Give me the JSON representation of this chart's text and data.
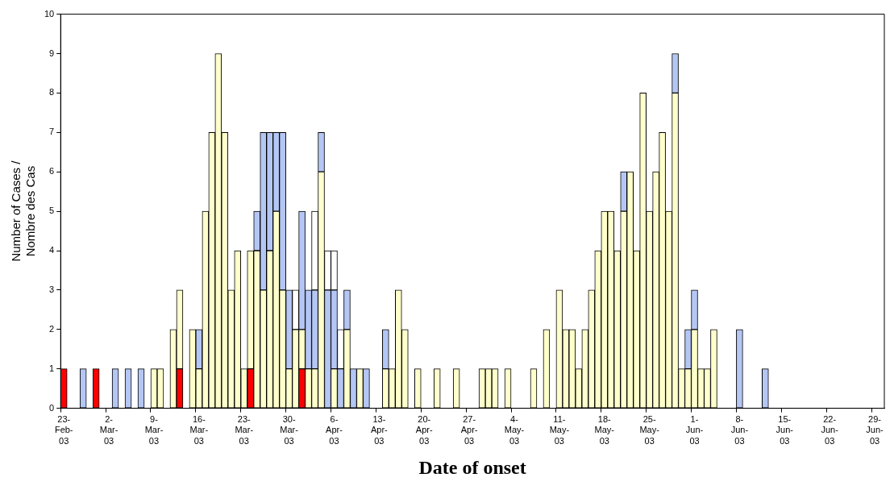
{
  "chart_data": {
    "type": "bar",
    "stacked": true,
    "xlabel": "Date of onset",
    "ylabel": "Number of Cases / Nombre des Cas",
    "ylim": [
      0,
      10
    ],
    "yticks": [
      0,
      1,
      2,
      3,
      4,
      5,
      6,
      7,
      8,
      9,
      10
    ],
    "categories": [
      "23-Feb-03",
      null,
      null,
      null,
      null,
      null,
      null,
      "2-Mar-03",
      null,
      null,
      null,
      null,
      null,
      null,
      "9-Mar-03",
      null,
      null,
      null,
      null,
      null,
      null,
      "16-Mar-03",
      null,
      null,
      null,
      null,
      null,
      null,
      "23-Mar-03",
      null,
      null,
      null,
      null,
      null,
      null,
      "30-Mar-03",
      null,
      null,
      null,
      null,
      null,
      null,
      "6-Apr-03",
      null,
      null,
      null,
      null,
      null,
      null,
      "13-Apr-03",
      null,
      null,
      null,
      null,
      null,
      null,
      "20-Apr-03",
      null,
      null,
      null,
      null,
      null,
      null,
      "27-Apr-03",
      null,
      null,
      null,
      null,
      null,
      null,
      "4-May-03",
      null,
      null,
      null,
      null,
      null,
      null,
      "11-May-03",
      null,
      null,
      null,
      null,
      null,
      null,
      "18-May-03",
      null,
      null,
      null,
      null,
      null,
      null,
      "25-May-03",
      null,
      null,
      null,
      null,
      null,
      null,
      "1-Jun-03",
      null,
      null,
      null,
      null,
      null,
      null,
      "8-Jun-03",
      null,
      null,
      null,
      null,
      null,
      null,
      "15-Jun-03",
      null,
      null,
      null,
      null,
      null,
      null,
      "22-Jun-03",
      null,
      null,
      null,
      null,
      null,
      null,
      "29-Jun-03",
      null
    ],
    "series": [
      {
        "color": "#ff0000",
        "values": [
          1,
          null,
          null,
          null,
          null,
          1,
          null,
          null,
          null,
          null,
          null,
          null,
          null,
          null,
          null,
          null,
          null,
          null,
          1,
          null,
          null,
          null,
          null,
          null,
          null,
          null,
          null,
          null,
          null,
          1,
          null,
          null,
          null,
          null,
          null,
          null,
          null,
          1,
          null,
          null,
          null,
          null,
          null,
          null,
          null,
          null,
          null,
          null,
          null,
          null,
          null,
          null,
          null,
          null,
          null,
          null,
          null,
          null,
          null,
          null,
          null,
          null,
          null,
          null,
          null,
          null,
          null,
          null,
          null,
          null,
          null,
          null,
          null,
          null,
          null,
          null,
          null,
          null,
          null,
          null,
          null,
          null,
          null,
          null,
          null,
          null,
          null,
          null,
          null,
          null,
          null,
          null,
          null,
          null,
          null,
          null,
          null,
          null,
          null,
          null,
          null,
          null,
          null,
          null,
          null,
          null,
          null,
          null,
          null,
          null,
          null,
          null,
          null,
          null,
          null,
          null,
          null,
          null,
          null,
          null,
          null,
          null,
          null,
          null,
          null,
          null,
          null,
          null
        ]
      },
      {
        "color": "#ffffcc",
        "values": [
          null,
          null,
          null,
          null,
          null,
          null,
          null,
          null,
          null,
          null,
          null,
          null,
          null,
          null,
          1,
          1,
          null,
          2,
          2,
          null,
          2,
          1,
          5,
          7,
          9,
          7,
          3,
          4,
          1,
          3,
          4,
          3,
          4,
          5,
          3,
          1,
          2,
          1,
          1,
          1,
          6,
          null,
          1,
          null,
          2,
          null,
          1,
          null,
          null,
          null,
          1,
          1,
          3,
          2,
          null,
          1,
          null,
          null,
          1,
          null,
          null,
          1,
          null,
          null,
          null,
          1,
          1,
          1,
          null,
          1,
          null,
          null,
          null,
          1,
          null,
          2,
          null,
          3,
          2,
          2,
          1,
          2,
          3,
          4,
          5,
          5,
          4,
          5,
          6,
          4,
          8,
          5,
          6,
          7,
          5,
          8,
          1,
          1,
          2,
          1,
          1,
          2,
          null,
          null,
          null,
          null,
          null,
          null,
          null,
          null,
          null,
          null,
          null,
          null,
          null,
          null,
          null,
          null,
          null,
          null,
          null,
          null,
          null,
          null,
          null,
          null,
          null,
          null
        ]
      },
      {
        "color": "#b4c6f4",
        "values": [
          null,
          null,
          null,
          1,
          null,
          null,
          null,
          null,
          1,
          null,
          1,
          null,
          1,
          null,
          null,
          null,
          null,
          null,
          null,
          null,
          null,
          1,
          null,
          null,
          null,
          null,
          null,
          null,
          null,
          null,
          1,
          4,
          3,
          2,
          4,
          2,
          null,
          3,
          2,
          2,
          1,
          3,
          2,
          1,
          1,
          1,
          null,
          1,
          null,
          null,
          1,
          null,
          null,
          null,
          null,
          null,
          null,
          null,
          null,
          null,
          null,
          null,
          null,
          null,
          null,
          null,
          null,
          null,
          null,
          null,
          null,
          null,
          null,
          null,
          null,
          null,
          null,
          null,
          null,
          null,
          null,
          null,
          null,
          null,
          null,
          null,
          null,
          1,
          null,
          null,
          null,
          null,
          null,
          null,
          null,
          1,
          null,
          1,
          1,
          null,
          null,
          null,
          null,
          null,
          null,
          2,
          null,
          null,
          null,
          1,
          null,
          null,
          null,
          null,
          null,
          null,
          null,
          null,
          null,
          null,
          null,
          null,
          null,
          null,
          null,
          null,
          null,
          null
        ]
      },
      {
        "color": "#ffffff",
        "values": [
          null,
          null,
          null,
          null,
          null,
          null,
          null,
          null,
          null,
          null,
          null,
          null,
          null,
          null,
          null,
          null,
          null,
          null,
          null,
          null,
          null,
          null,
          null,
          null,
          null,
          null,
          null,
          null,
          null,
          null,
          null,
          null,
          null,
          null,
          null,
          null,
          1,
          null,
          null,
          2,
          null,
          1,
          1,
          1,
          null,
          null,
          null,
          null,
          null,
          null,
          null,
          null,
          null,
          null,
          null,
          null,
          null,
          null,
          null,
          null,
          null,
          null,
          null,
          null,
          null,
          null,
          null,
          null,
          null,
          null,
          null,
          null,
          null,
          null,
          null,
          null,
          null,
          null,
          null,
          null,
          null,
          null,
          null,
          null,
          null,
          null,
          null,
          null,
          null,
          null,
          null,
          null,
          null,
          null,
          null,
          null,
          null,
          null,
          null,
          null,
          null,
          null,
          null,
          null,
          null,
          null,
          null,
          null,
          null,
          null,
          null,
          null,
          null,
          null,
          null,
          null,
          null,
          null,
          null,
          null,
          null,
          null,
          null,
          null,
          null,
          null,
          null,
          null
        ]
      }
    ]
  }
}
